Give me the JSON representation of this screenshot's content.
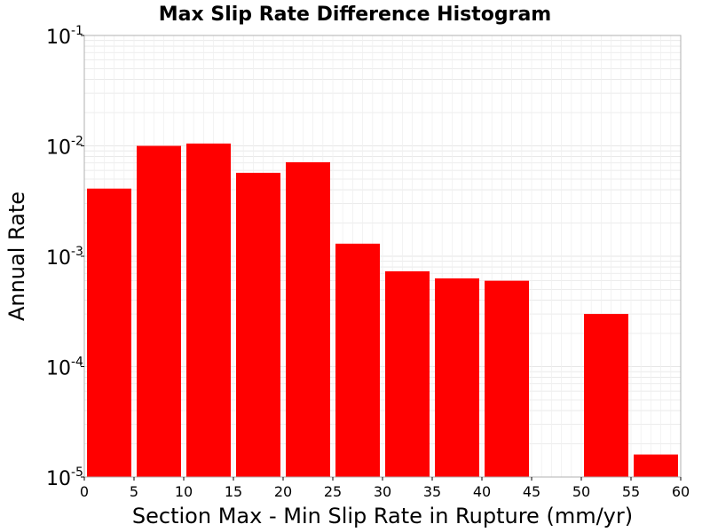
{
  "chart_data": {
    "type": "bar",
    "title": "Max Slip Rate Difference Histogram",
    "xlabel": "Section Max - Min Slip Rate in Rupture (mm/yr)",
    "ylabel": "Annual Rate",
    "xlim": [
      0,
      60
    ],
    "ylim": [
      1e-05,
      0.1
    ],
    "yscale": "log",
    "grid": true,
    "bar_color": "#ff0000",
    "grid_color": "#e6e6e6",
    "bin_width": 5,
    "bins": [
      {
        "x0": 0,
        "x1": 5,
        "value": 0.0041
      },
      {
        "x0": 5,
        "x1": 10,
        "value": 0.01
      },
      {
        "x0": 10,
        "x1": 15,
        "value": 0.0105
      },
      {
        "x0": 15,
        "x1": 20,
        "value": 0.0057
      },
      {
        "x0": 20,
        "x1": 25,
        "value": 0.0071
      },
      {
        "x0": 25,
        "x1": 30,
        "value": 0.0013
      },
      {
        "x0": 30,
        "x1": 35,
        "value": 0.00073
      },
      {
        "x0": 35,
        "x1": 40,
        "value": 0.00063
      },
      {
        "x0": 40,
        "x1": 45,
        "value": 0.0006
      },
      {
        "x0": 45,
        "x1": 50,
        "value": 0
      },
      {
        "x0": 50,
        "x1": 55,
        "value": 0.0003
      },
      {
        "x0": 55,
        "x1": 60,
        "value": 1.6e-05
      }
    ],
    "xticks": [
      "0",
      "5",
      "10",
      "15",
      "20",
      "25",
      "30",
      "35",
      "40",
      "45",
      "50",
      "55",
      "60"
    ],
    "yticks": [
      {
        "base": "10",
        "exp": "-5"
      },
      {
        "base": "10",
        "exp": "-4"
      },
      {
        "base": "10",
        "exp": "-3"
      },
      {
        "base": "10",
        "exp": "-2"
      },
      {
        "base": "10",
        "exp": "-1"
      }
    ]
  }
}
